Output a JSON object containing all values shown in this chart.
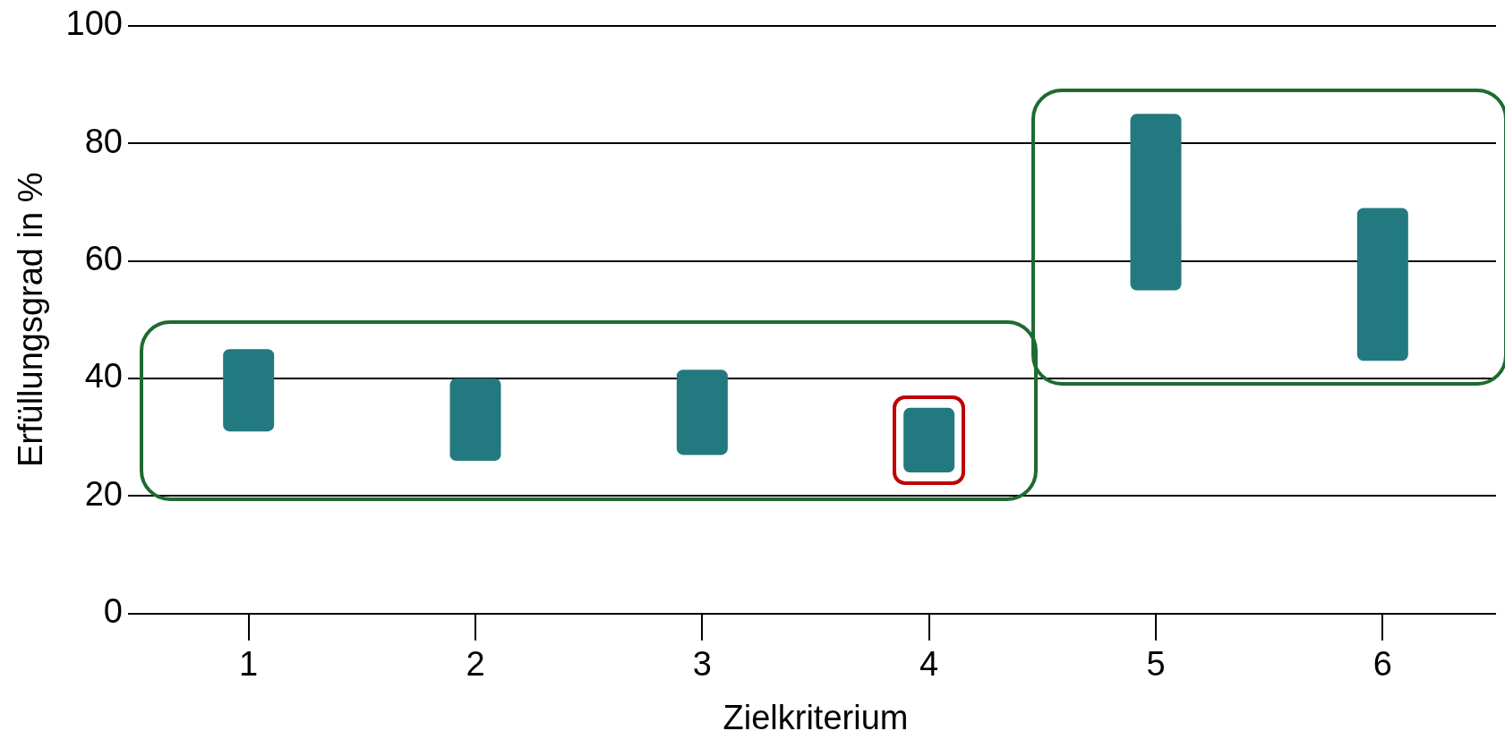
{
  "chart_data": {
    "type": "bar",
    "xlabel": "Zielkriterium",
    "ylabel": "Erfüllungsgrad in %",
    "categories": [
      "1",
      "2",
      "3",
      "4",
      "5",
      "6"
    ],
    "base": [
      31,
      26,
      27,
      24,
      55,
      43
    ],
    "values": [
      14,
      14,
      14.5,
      11,
      30,
      26
    ],
    "color": "#227a80",
    "ylim": [
      0,
      100
    ],
    "yticks": [
      0,
      20,
      40,
      60,
      80,
      100
    ],
    "grid": "y",
    "legend": false
  }
}
